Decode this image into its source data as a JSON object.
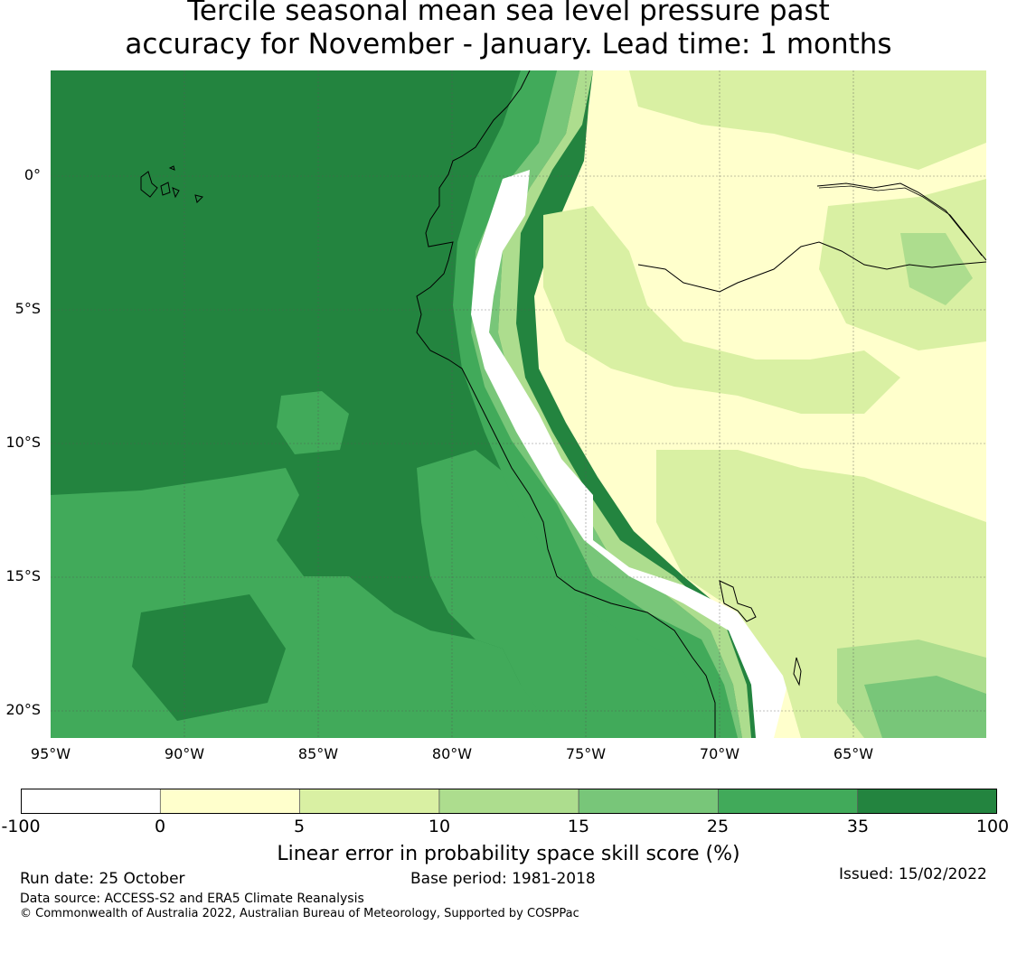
{
  "title": {
    "line1": "Tercile seasonal mean sea level pressure past",
    "line2": "accuracy for November - January. Lead time: 1 months"
  },
  "map": {
    "lat_labels": [
      "0°",
      "5°S",
      "10°S",
      "15°S",
      "20°S"
    ],
    "lon_labels": [
      "95°W",
      "90°W",
      "85°W",
      "80°W",
      "75°W",
      "70°W",
      "65°W"
    ],
    "lon_range": [
      -95,
      -60
    ],
    "lat_range": [
      -21,
      4
    ],
    "colors": {
      "deep_green": "#23843f",
      "mid_green": "#41aa5a",
      "green": "#78c679",
      "light_green": "#addd8e",
      "pale_green": "#d9f0a3",
      "cream": "#ffffcc",
      "white": "#ffffff",
      "coast": "#000000"
    }
  },
  "colorbar": {
    "ticks": [
      "-100",
      "0",
      "5",
      "10",
      "15",
      "25",
      "35",
      "100"
    ],
    "colors": [
      "#ffffff",
      "#ffffcc",
      "#d9f0a3",
      "#addd8e",
      "#78c679",
      "#41aa5a",
      "#23843f"
    ],
    "label": "Linear error in probability space skill score (%)"
  },
  "footer": {
    "run_date": "Run date: 25 October",
    "base_period": "Base period: 1981-2018",
    "issued": "Issued: 15/02/2022",
    "data_source": "Data source: ACCESS-S2 and ERA5 Climate Reanalysis",
    "copyright": "© Commonwealth of Australia 2022, Australian Bureau of Meteorology, Supported by COSPPac"
  }
}
